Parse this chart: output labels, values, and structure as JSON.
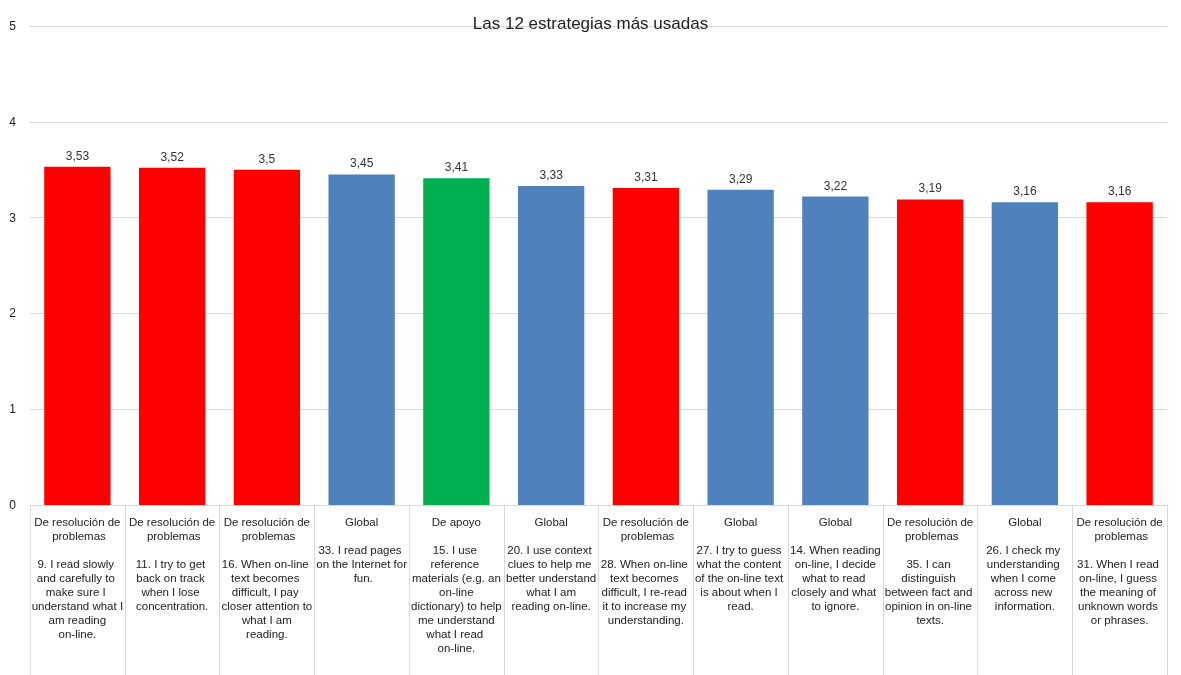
{
  "chart_data": {
    "type": "bar",
    "title": "Las 12 estrategias más usadas",
    "categories": [
      "De resolución de problemas\n9. I read slowly and carefully to make sure I understand what I am reading on-line.",
      "De resolución de problemas\n11. I try to get back on track when I lose concentration.",
      "De resolución de problemas\n16. When on-line text becomes difficult, I pay closer attention to what I am reading.",
      "Global\n33. I read pages on the Internet for fun.",
      "De apoyo\n15. I use reference materials (e.g. an on-line dictionary) to help me understand what I read on-line.",
      "Global\n20. I use context clues to help me better understand what I am reading on-line.",
      "De resolución de problemas\n28. When on-line text becomes difficult, I re-read it to increase my understanding.",
      "Global\n27. I try to guess what the content of the on-line text is about when I read.",
      "Global\n14. When reading on-line, I decide what to read closely and what to ignore.",
      "De resolución de problemas\n35. I can distinguish between fact and opinion in on-line texts.",
      "Global\n26. I check my understanding when I come across new information.",
      "De resolución de problemas\n31. When I read on-line, I guess the meaning of unknown words or phrases."
    ],
    "values": [
      3.53,
      3.52,
      3.5,
      3.45,
      3.41,
      3.33,
      3.31,
      3.29,
      3.22,
      3.19,
      3.16,
      3.16
    ],
    "value_labels": [
      "3,53",
      "3,52",
      "3,5",
      "3,45",
      "3,41",
      "3,33",
      "3,31",
      "3,29",
      "3,22",
      "3,19",
      "3,16",
      "3,16"
    ],
    "colors": [
      "#ff0000",
      "#ff0000",
      "#ff0000",
      "#4f81bd",
      "#00b050",
      "#4f81bd",
      "#ff0000",
      "#4f81bd",
      "#4f81bd",
      "#ff0000",
      "#4f81bd",
      "#ff0000"
    ],
    "ylim": [
      0,
      5
    ],
    "yticks": [
      0,
      1,
      2,
      3,
      4,
      5
    ],
    "grid": "y"
  }
}
